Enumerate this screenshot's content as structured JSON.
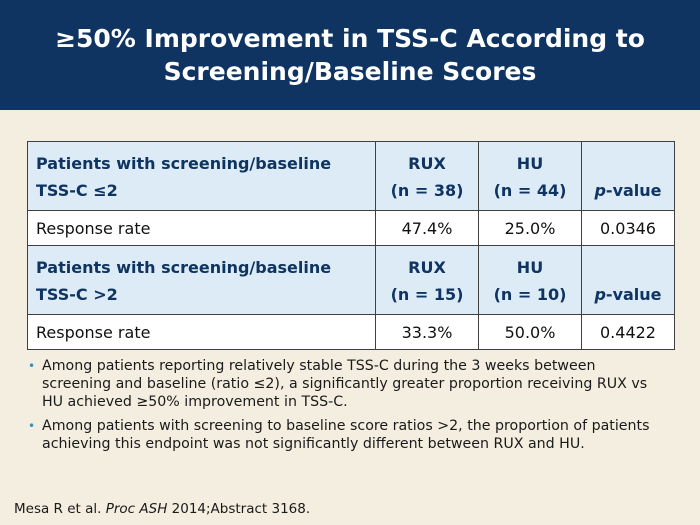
{
  "header": {
    "title": "≥50% Improvement in TSS-C According to Screening/Baseline Scores"
  },
  "table": {
    "group1": {
      "label_line1": "Patients with screening/baseline",
      "label_line2": "TSS-C ≤2",
      "col1_line1": "RUX",
      "col1_line2": "(n = 38)",
      "col2_line1": "HU",
      "col2_line2": "(n = 44)",
      "p_label_italic": "p",
      "p_label_rest": "-value",
      "row_label": "Response rate",
      "rux_value": "47.4%",
      "hu_value": "25.0%",
      "p_value": "0.0346"
    },
    "group2": {
      "label_line1": "Patients with screening/baseline",
      "label_line2": "TSS-C >2",
      "col1_line1": "RUX",
      "col1_line2": "(n = 15)",
      "col2_line1": "HU",
      "col2_line2": "(n = 10)",
      "p_label_italic": "p",
      "p_label_rest": "-value",
      "row_label": "Response rate",
      "rux_value": "33.3%",
      "hu_value": "50.0%",
      "p_value": "0.4422"
    }
  },
  "bullets": [
    "Among patients reporting relatively stable TSS-C during the 3 weeks between screening and baseline (ratio ≤2), a significantly greater proportion receiving RUX vs HU achieved ≥50% improvement in TSS-C.",
    "Among patients with screening to baseline score ratios >2, the proportion of patients achieving this endpoint was not significantly different between RUX and HU."
  ],
  "citation": {
    "authors": "Mesa R et al. ",
    "journal": "Proc ASH",
    "rest": " 2014;Abstract 3168."
  },
  "colors": {
    "header_bg": "#0f3462",
    "page_bg": "#f3eedf",
    "table_header_bg": "#dcebf5",
    "bullet_color": "#3b8fb3"
  }
}
